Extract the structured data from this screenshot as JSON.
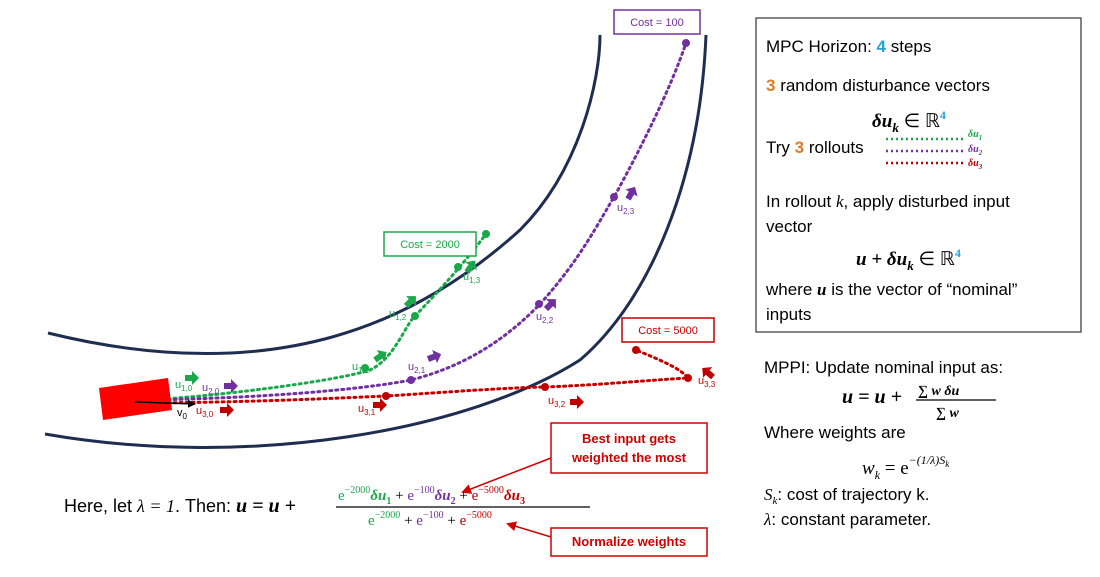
{
  "road": {
    "cost_box_rollout1": "Cost = 2000",
    "cost_box_rollout2": "Cost = 100",
    "cost_box_rollout3": "Cost = 5000",
    "vehicle_velocity_label": "v",
    "vehicle_velocity_sub": "0",
    "input_labels": [
      {
        "base": "u",
        "sub": "1,0",
        "rollout": 1
      },
      {
        "base": "u",
        "sub": "2,0",
        "rollout": 2
      },
      {
        "base": "u",
        "sub": "3,0",
        "rollout": 3
      },
      {
        "base": "u",
        "sub": "1,1",
        "rollout": 1
      },
      {
        "base": "u",
        "sub": "1,2",
        "rollout": 1
      },
      {
        "base": "u",
        "sub": "1,3",
        "rollout": 1
      },
      {
        "base": "u",
        "sub": "2,1",
        "rollout": 2
      },
      {
        "base": "u",
        "sub": "2,2",
        "rollout": 2
      },
      {
        "base": "u",
        "sub": "2,3",
        "rollout": 2
      },
      {
        "base": "u",
        "sub": "3,1",
        "rollout": 3
      },
      {
        "base": "u",
        "sub": "3,2",
        "rollout": 3
      },
      {
        "base": "u",
        "sub": "3,3",
        "rollout": 3
      }
    ]
  },
  "colors": {
    "rollout1": "#1aa84a",
    "rollout2": "#7030a0",
    "rollout3": "#c00000",
    "accent_blue": "#1fa5d8",
    "accent_orange": "#e07b25",
    "road_edge": "#1f2d50",
    "vehicle": "#ff0000",
    "callout": "#d00000"
  },
  "info_box": {
    "horizon_label": "MPC Horizon: ",
    "horizon_value": "4",
    "horizon_unit": " steps",
    "disturbance_count": "3",
    "disturbance_text": " random disturbance vectors",
    "delta_symbol": "δu",
    "delta_sub": "k",
    "in_reals": " ∈ ℝ",
    "reals_exp": "4",
    "try_text": "Try ",
    "rollouts_count": "3",
    "rollouts_text": " rollouts",
    "legend": [
      {
        "label": "δu",
        "sub": "1",
        "rollout": 1
      },
      {
        "label": "δu",
        "sub": "2",
        "rollout": 2
      },
      {
        "label": "δu",
        "sub": "3",
        "rollout": 3
      }
    ],
    "rollout_k_line1a": "In rollout ",
    "rollout_k_var": "k",
    "rollout_k_line1b": ", apply disturbed input",
    "rollout_k_line2": "vector",
    "u_plus": "u + δu",
    "u_plus_sub": "k",
    "where_line1a": "where ",
    "where_var": "u",
    "where_line1b": " is the vector of “nominal”",
    "where_line2": "inputs"
  },
  "mppi": {
    "update_text": "MPPI: Update nominal input as:",
    "update_lhs": "u = u + ",
    "update_num": "∑ w δu",
    "update_den": "∑ w",
    "weights_text": "Where weights are",
    "weights_lhs": "w",
    "weights_sub": "k",
    "weights_eq": " = e",
    "weights_exp": "−(1/λ)S",
    "weights_exp_sub": "k",
    "cost_def_var": "S",
    "cost_def_sub": "k",
    "cost_def_text": ": cost of trajectory k.",
    "lambda_var": "λ",
    "lambda_text": ": constant parameter."
  },
  "bottom_formula": {
    "here_text": "Here, let ",
    "lambda_eq": "λ = 1",
    "then_text": ". Then: ",
    "lhs": "u = u + ",
    "num_terms": [
      {
        "exp": "−2000",
        "du": "δu",
        "sub": "1",
        "rollout": 1
      },
      {
        "exp": "−100",
        "du": "δu",
        "sub": "2",
        "rollout": 2
      },
      {
        "exp": "−5000",
        "du": "δu",
        "sub": "3",
        "rollout": 3
      }
    ],
    "den_terms": [
      {
        "exp": "−2000",
        "rollout": 1
      },
      {
        "exp": "−100",
        "rollout": 2
      },
      {
        "exp": "−5000",
        "rollout": 3
      }
    ],
    "base_e": "e",
    "plus": " + "
  },
  "callouts": {
    "best_line1": "Best input gets",
    "best_line2": "weighted the most",
    "normalize": "Normalize weights"
  }
}
